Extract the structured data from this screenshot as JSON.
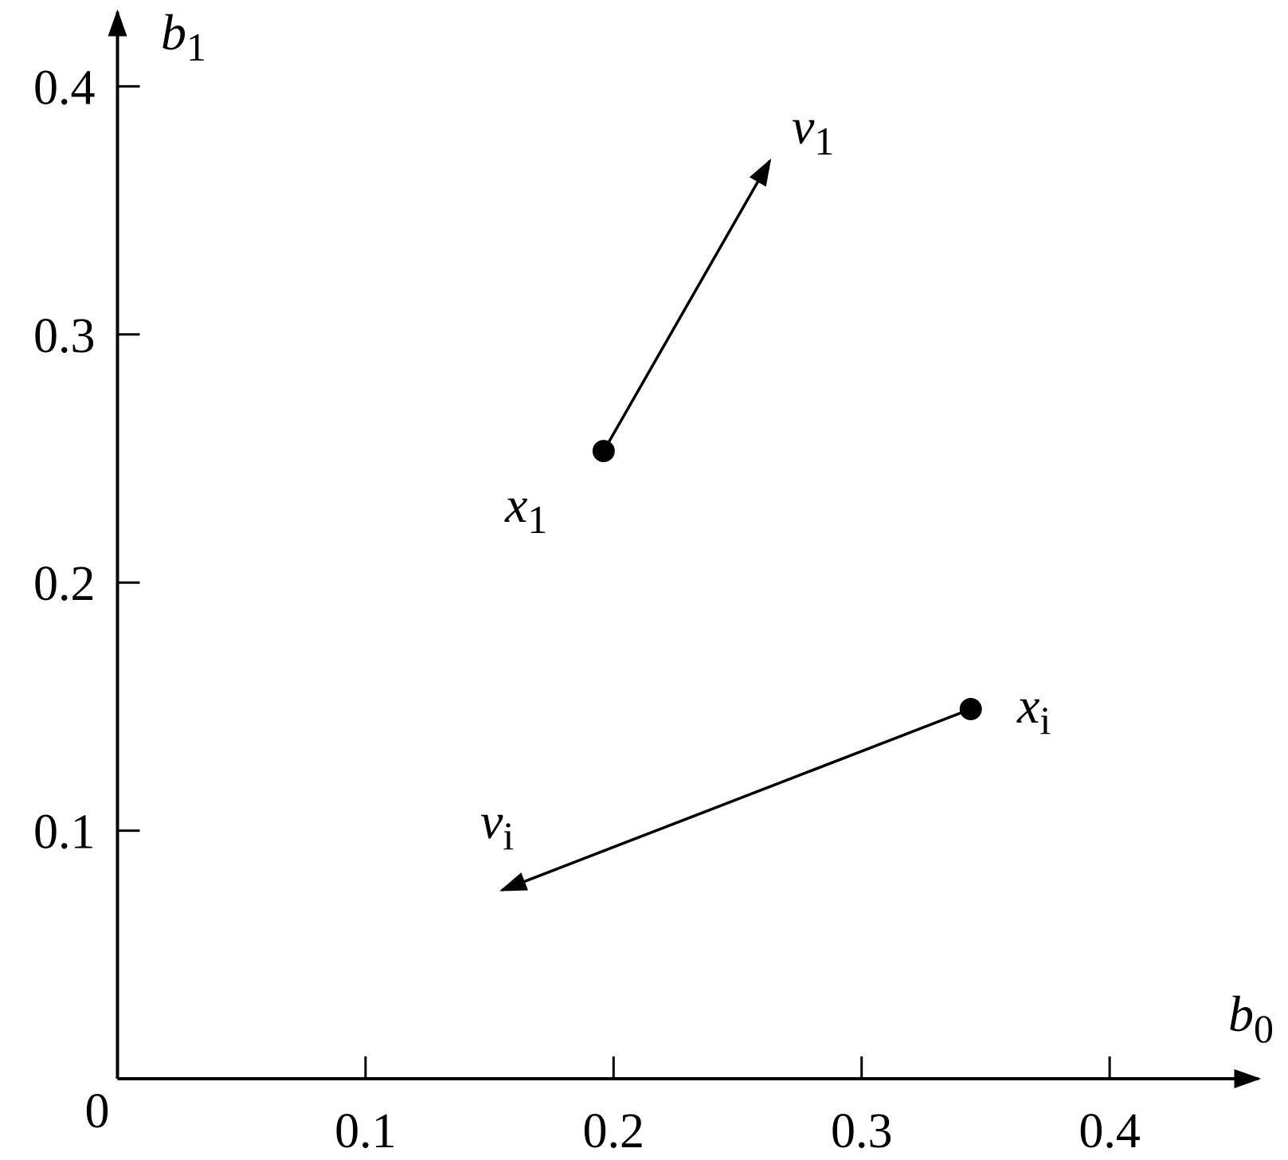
{
  "chart_data": {
    "type": "vector",
    "xlabel": {
      "base": "b",
      "sub": "0"
    },
    "ylabel": {
      "base": "b",
      "sub": "1"
    },
    "xlim": [
      0,
      0.46
    ],
    "ylim": [
      0,
      0.43
    ],
    "xticks": [
      0,
      0.1,
      0.2,
      0.3,
      0.4
    ],
    "yticks": [
      0.1,
      0.2,
      0.3,
      0.4
    ],
    "color": "#000000",
    "points": [
      {
        "label": {
          "base": "x",
          "sub": "1"
        },
        "x": 0.196,
        "y": 0.253,
        "vector_label": {
          "base": "v",
          "sub": "1"
        },
        "vx": 0.263,
        "vy": 0.37
      },
      {
        "label": {
          "base": "x",
          "sub": "i"
        },
        "x": 0.344,
        "y": 0.149,
        "vector_label": {
          "base": "v",
          "sub": "i"
        },
        "vx": 0.155,
        "vy": 0.076
      }
    ]
  }
}
